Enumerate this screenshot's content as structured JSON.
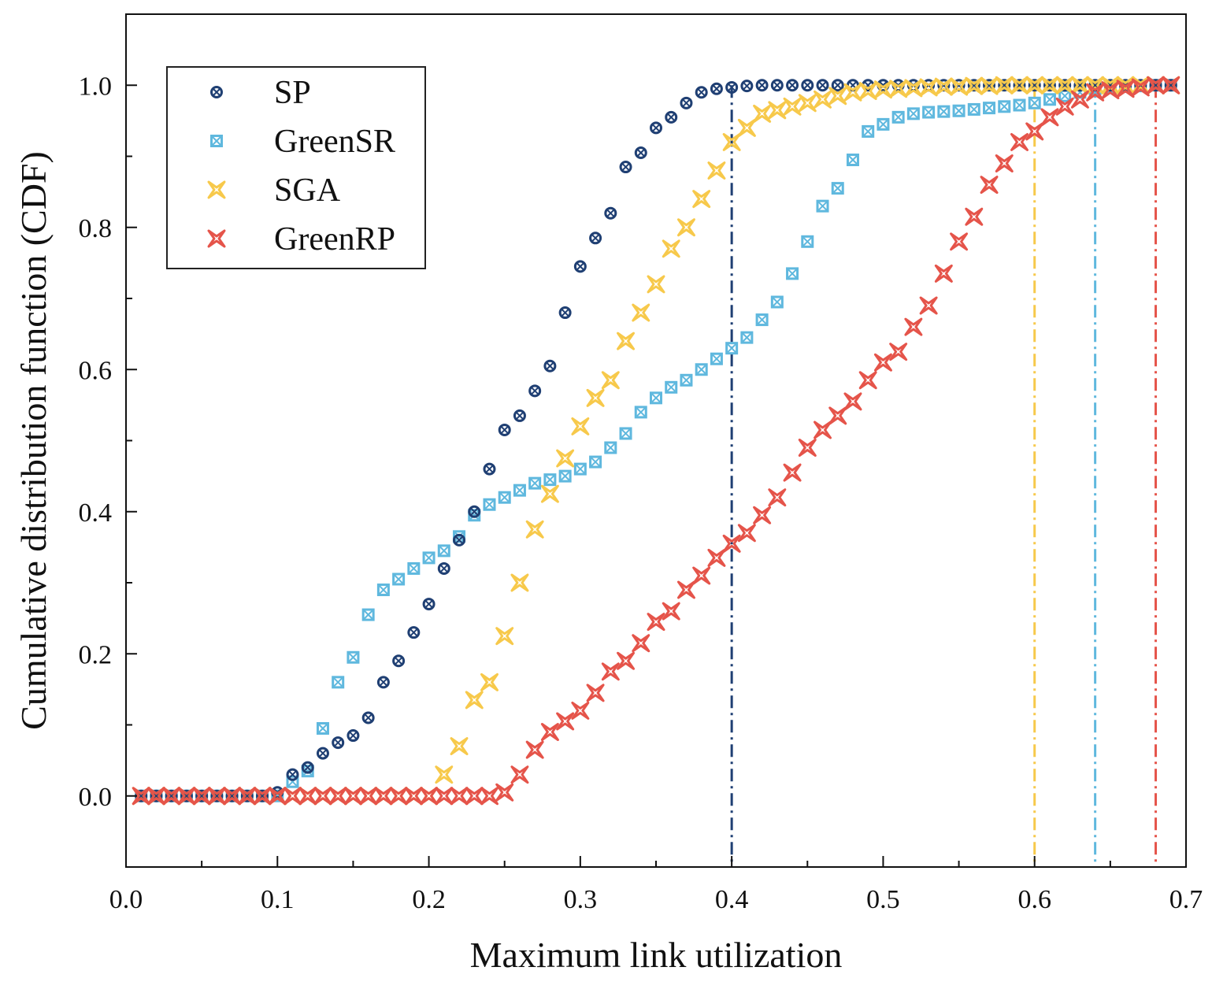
{
  "chart_data": {
    "type": "scatter",
    "xlabel": "Maximum link utilization",
    "ylabel": "Cumulative distribution function (CDF)",
    "xlim": [
      0.0,
      0.7
    ],
    "ylim": [
      -0.1,
      1.1
    ],
    "xticks": [
      0.0,
      0.1,
      0.2,
      0.3,
      0.4,
      0.5,
      0.6,
      0.7
    ],
    "xtick_labels": [
      "0.0",
      "0.1",
      "0.2",
      "0.3",
      "0.4",
      "0.5",
      "0.6",
      "0.7"
    ],
    "yticks": [
      0.0,
      0.2,
      0.4,
      0.6,
      0.8,
      1.0
    ],
    "ytick_labels": [
      "0.0",
      "0.2",
      "0.4",
      "0.6",
      "0.8",
      "1.0"
    ],
    "legend_position": "top-left",
    "series": [
      {
        "name": "SP",
        "color": "#1f3f73",
        "marker": "circle-x",
        "x": [
          0.01,
          0.02,
          0.03,
          0.04,
          0.05,
          0.06,
          0.07,
          0.08,
          0.09,
          0.1,
          0.11,
          0.12,
          0.13,
          0.14,
          0.15,
          0.16,
          0.17,
          0.18,
          0.19,
          0.2,
          0.21,
          0.22,
          0.23,
          0.24,
          0.25,
          0.26,
          0.27,
          0.28,
          0.29,
          0.3,
          0.31,
          0.32,
          0.33,
          0.34,
          0.35,
          0.36,
          0.37,
          0.38,
          0.39,
          0.4,
          0.41,
          0.42,
          0.43,
          0.44,
          0.45,
          0.46,
          0.47,
          0.48,
          0.49,
          0.5,
          0.51,
          0.52,
          0.53,
          0.54,
          0.55,
          0.56,
          0.57,
          0.58,
          0.59,
          0.6,
          0.61,
          0.62,
          0.63,
          0.64,
          0.65,
          0.66,
          0.67,
          0.68,
          0.69
        ],
        "y": [
          0,
          0,
          0,
          0,
          0,
          0,
          0,
          0,
          0,
          0.005,
          0.03,
          0.04,
          0.06,
          0.075,
          0.085,
          0.11,
          0.16,
          0.19,
          0.23,
          0.27,
          0.32,
          0.36,
          0.4,
          0.46,
          0.515,
          0.535,
          0.57,
          0.605,
          0.68,
          0.745,
          0.785,
          0.82,
          0.885,
          0.905,
          0.94,
          0.955,
          0.975,
          0.99,
          0.995,
          0.997,
          0.999,
          1,
          1,
          1,
          1,
          1,
          1,
          1,
          1,
          1,
          1,
          1,
          1,
          1,
          1,
          1,
          1,
          1,
          1,
          1,
          1,
          1,
          1,
          1,
          1,
          1,
          1,
          1,
          1
        ]
      },
      {
        "name": "GreenSR",
        "color": "#5fb8de",
        "marker": "square-x",
        "x": [
          0.01,
          0.02,
          0.03,
          0.04,
          0.05,
          0.06,
          0.07,
          0.08,
          0.09,
          0.1,
          0.11,
          0.12,
          0.13,
          0.14,
          0.15,
          0.16,
          0.17,
          0.18,
          0.19,
          0.2,
          0.21,
          0.22,
          0.23,
          0.24,
          0.25,
          0.26,
          0.27,
          0.28,
          0.29,
          0.3,
          0.31,
          0.32,
          0.33,
          0.34,
          0.35,
          0.36,
          0.37,
          0.38,
          0.39,
          0.4,
          0.41,
          0.42,
          0.43,
          0.44,
          0.45,
          0.46,
          0.47,
          0.48,
          0.49,
          0.5,
          0.51,
          0.52,
          0.53,
          0.54,
          0.55,
          0.56,
          0.57,
          0.58,
          0.59,
          0.6,
          0.61,
          0.62,
          0.63,
          0.64,
          0.65,
          0.66,
          0.67,
          0.68,
          0.69
        ],
        "y": [
          0,
          0,
          0,
          0,
          0,
          0,
          0,
          0,
          0,
          0,
          0.02,
          0.035,
          0.095,
          0.16,
          0.195,
          0.255,
          0.29,
          0.305,
          0.32,
          0.335,
          0.345,
          0.365,
          0.395,
          0.41,
          0.42,
          0.43,
          0.44,
          0.445,
          0.45,
          0.46,
          0.47,
          0.49,
          0.51,
          0.54,
          0.56,
          0.575,
          0.585,
          0.6,
          0.615,
          0.63,
          0.645,
          0.67,
          0.695,
          0.735,
          0.78,
          0.83,
          0.855,
          0.895,
          0.935,
          0.945,
          0.955,
          0.96,
          0.962,
          0.963,
          0.964,
          0.966,
          0.968,
          0.97,
          0.972,
          0.975,
          0.98,
          0.985,
          0.99,
          0.995,
          0.997,
          0.998,
          0.999,
          1,
          1
        ]
      },
      {
        "name": "SGA",
        "color": "#f7c94b",
        "marker": "star-x",
        "x": [
          0.01,
          0.02,
          0.03,
          0.04,
          0.05,
          0.06,
          0.07,
          0.08,
          0.09,
          0.1,
          0.11,
          0.12,
          0.13,
          0.14,
          0.15,
          0.16,
          0.17,
          0.18,
          0.19,
          0.2,
          0.21,
          0.22,
          0.23,
          0.24,
          0.25,
          0.26,
          0.27,
          0.28,
          0.29,
          0.3,
          0.31,
          0.32,
          0.33,
          0.34,
          0.35,
          0.36,
          0.37,
          0.38,
          0.39,
          0.4,
          0.41,
          0.42,
          0.43,
          0.44,
          0.45,
          0.46,
          0.47,
          0.48,
          0.49,
          0.5,
          0.51,
          0.52,
          0.53,
          0.54,
          0.55,
          0.56,
          0.57,
          0.58,
          0.59,
          0.6,
          0.61,
          0.62,
          0.63,
          0.64,
          0.65,
          0.66,
          0.67,
          0.68,
          0.69
        ],
        "y": [
          0,
          0,
          0,
          0,
          0,
          0,
          0,
          0,
          0,
          0,
          0,
          0,
          0,
          0,
          0,
          0,
          0,
          0,
          0,
          0,
          0.03,
          0.07,
          0.135,
          0.16,
          0.225,
          0.3,
          0.375,
          0.425,
          0.475,
          0.52,
          0.56,
          0.585,
          0.64,
          0.68,
          0.72,
          0.77,
          0.8,
          0.84,
          0.88,
          0.92,
          0.94,
          0.96,
          0.965,
          0.97,
          0.975,
          0.98,
          0.985,
          0.99,
          0.992,
          0.994,
          0.995,
          0.996,
          0.997,
          0.998,
          0.998,
          0.999,
          0.999,
          1,
          1,
          1,
          1,
          1,
          1,
          1,
          1,
          1,
          1,
          1,
          1
        ]
      },
      {
        "name": "GreenRP",
        "color": "#e5544a",
        "marker": "star-x",
        "x": [
          0.01,
          0.02,
          0.03,
          0.04,
          0.05,
          0.06,
          0.07,
          0.08,
          0.09,
          0.1,
          0.11,
          0.12,
          0.13,
          0.14,
          0.15,
          0.16,
          0.17,
          0.18,
          0.19,
          0.2,
          0.21,
          0.22,
          0.23,
          0.24,
          0.25,
          0.26,
          0.27,
          0.28,
          0.29,
          0.3,
          0.31,
          0.32,
          0.33,
          0.34,
          0.35,
          0.36,
          0.37,
          0.38,
          0.39,
          0.4,
          0.41,
          0.42,
          0.43,
          0.44,
          0.45,
          0.46,
          0.47,
          0.48,
          0.49,
          0.5,
          0.51,
          0.52,
          0.53,
          0.54,
          0.55,
          0.56,
          0.57,
          0.58,
          0.59,
          0.6,
          0.61,
          0.62,
          0.63,
          0.64,
          0.65,
          0.66,
          0.67,
          0.68,
          0.69
        ],
        "y": [
          0,
          0,
          0,
          0,
          0,
          0,
          0,
          0,
          0,
          0,
          0,
          0,
          0,
          0,
          0,
          0,
          0,
          0,
          0,
          0,
          0,
          0,
          0,
          0,
          0.005,
          0.03,
          0.065,
          0.09,
          0.105,
          0.12,
          0.145,
          0.175,
          0.19,
          0.215,
          0.245,
          0.26,
          0.29,
          0.31,
          0.335,
          0.355,
          0.37,
          0.395,
          0.42,
          0.455,
          0.49,
          0.515,
          0.535,
          0.555,
          0.585,
          0.61,
          0.625,
          0.66,
          0.69,
          0.735,
          0.78,
          0.815,
          0.86,
          0.89,
          0.92,
          0.935,
          0.955,
          0.97,
          0.98,
          0.99,
          0.993,
          0.995,
          0.997,
          1,
          1
        ]
      }
    ],
    "reference_lines": [
      {
        "series": "SP",
        "x": 0.4,
        "color": "#1f3f73"
      },
      {
        "series": "SGA",
        "x": 0.6,
        "color": "#f7c94b"
      },
      {
        "series": "GreenSR",
        "x": 0.64,
        "color": "#5fb8de"
      },
      {
        "series": "GreenRP",
        "x": 0.68,
        "color": "#e5544a"
      }
    ]
  }
}
